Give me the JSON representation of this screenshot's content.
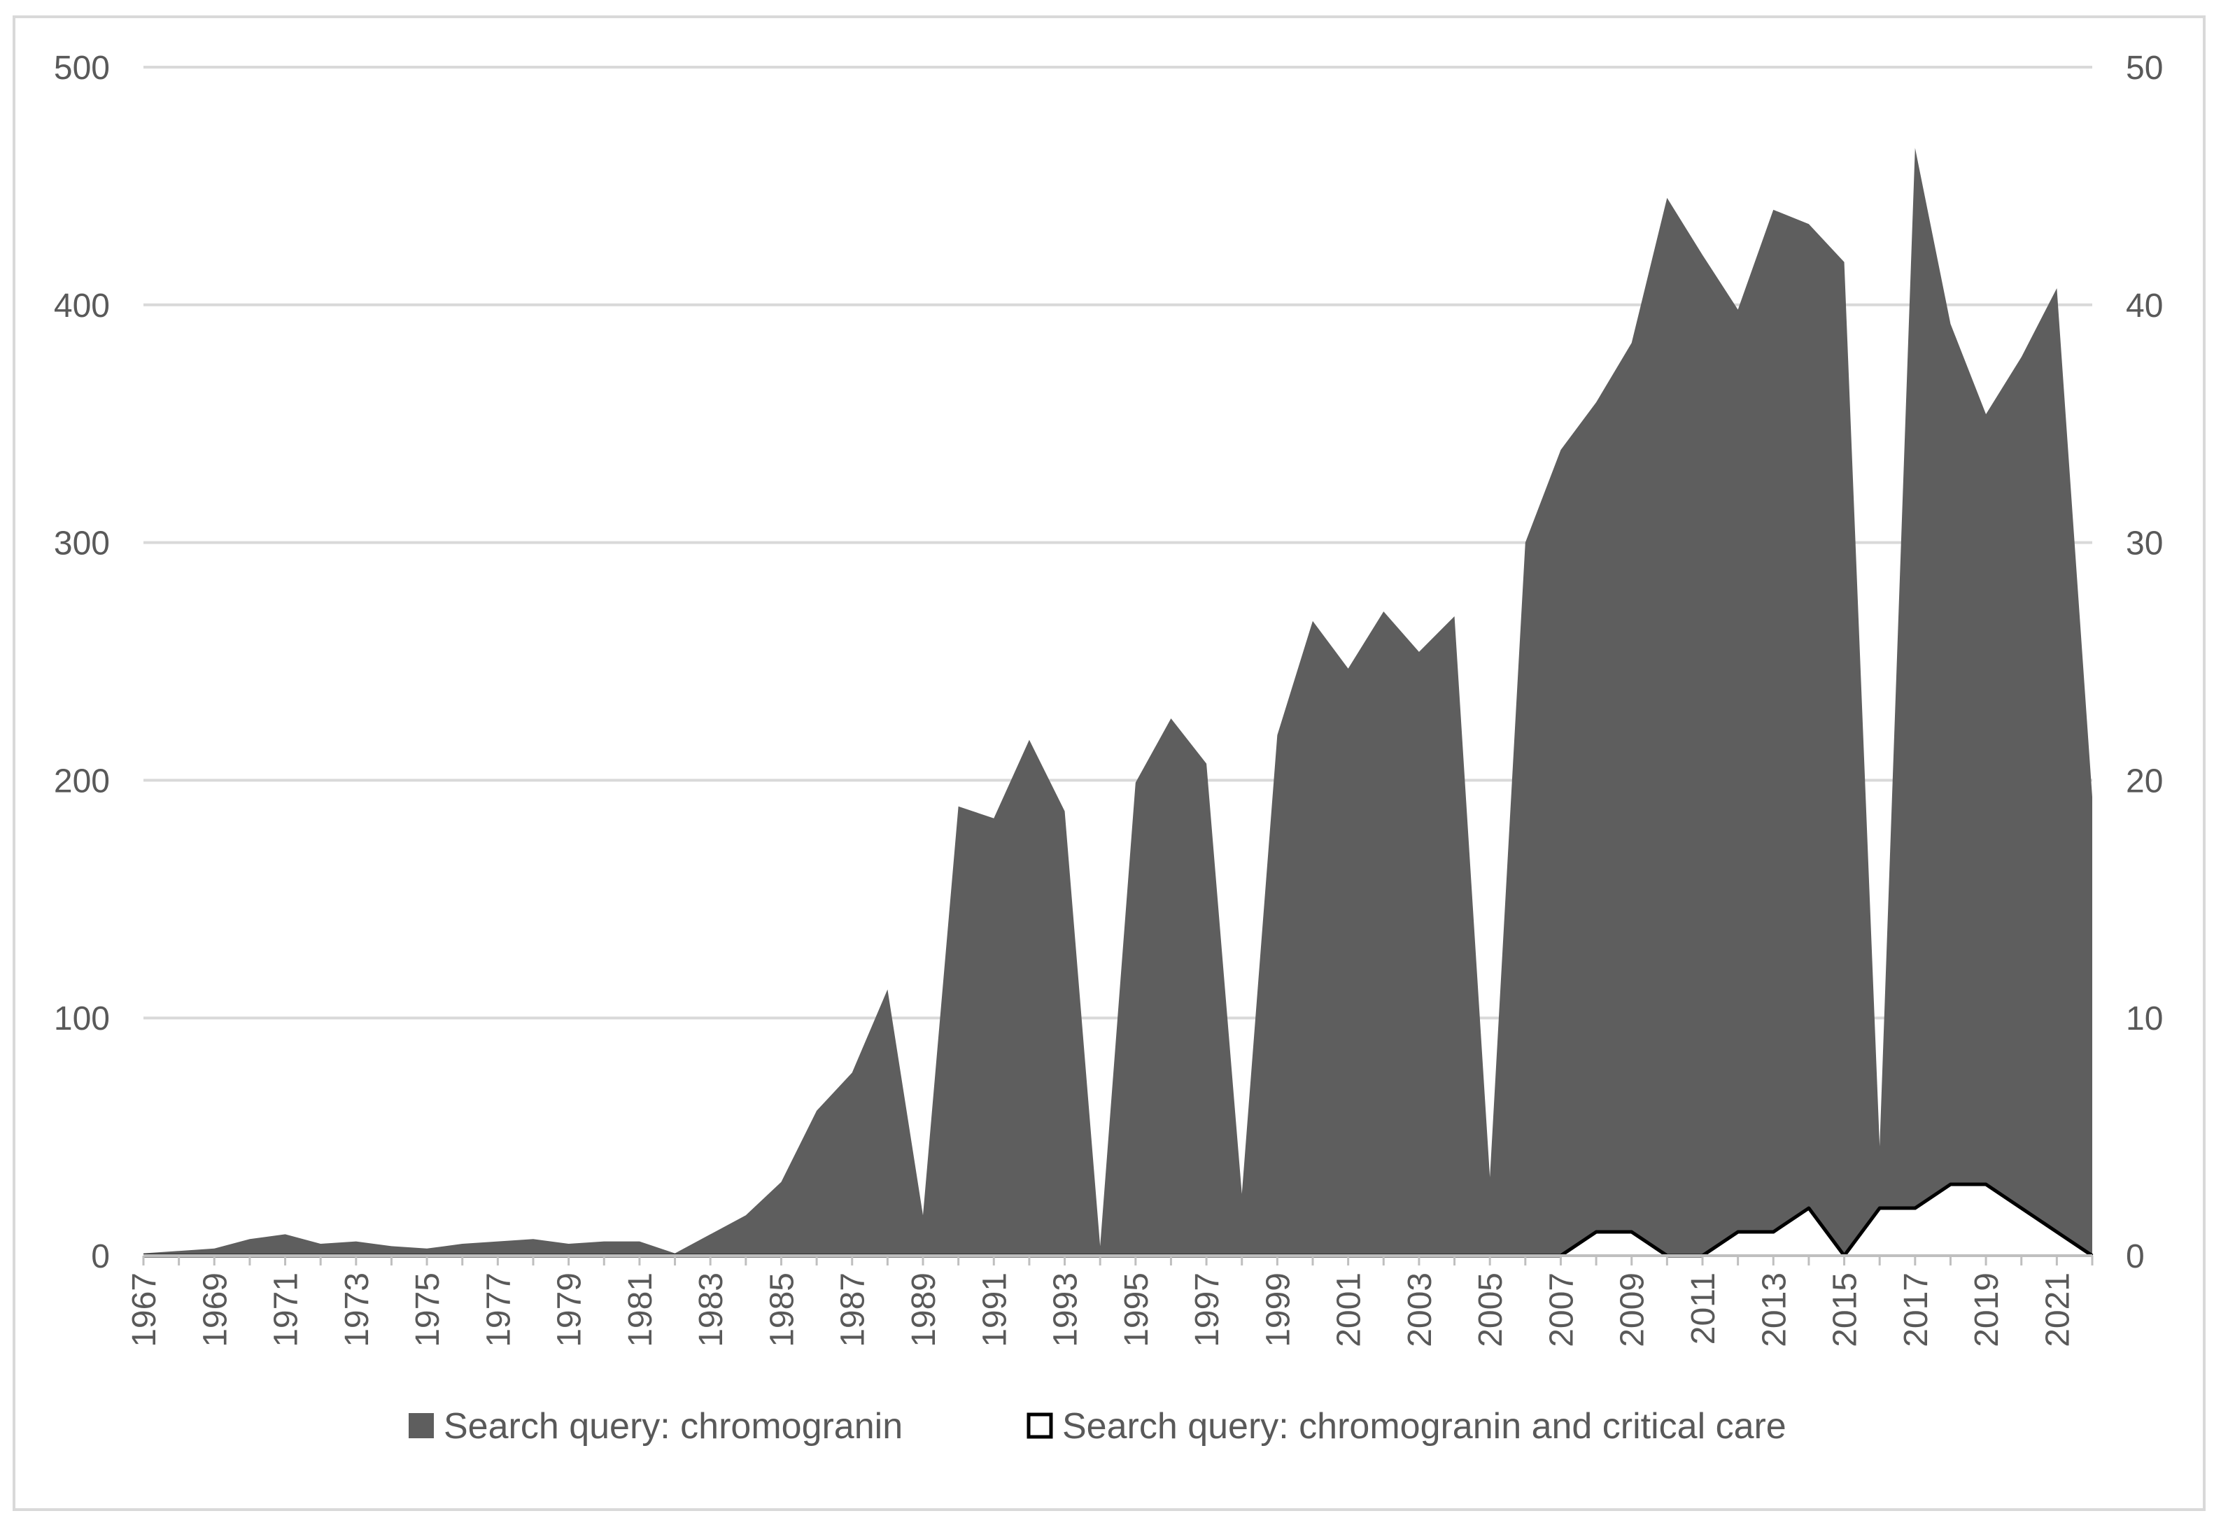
{
  "chart_data": {
    "type": "area",
    "title": "",
    "xlabel": "",
    "ylabel": "",
    "x": [
      1967,
      1968,
      1969,
      1970,
      1971,
      1972,
      1973,
      1974,
      1975,
      1976,
      1977,
      1978,
      1979,
      1980,
      1981,
      1982,
      1983,
      1984,
      1985,
      1986,
      1987,
      1988,
      1989,
      1990,
      1991,
      1992,
      1993,
      1994,
      1995,
      1996,
      1997,
      1998,
      1999,
      2000,
      2001,
      2002,
      2003,
      2004,
      2005,
      2006,
      2007,
      2008,
      2009,
      2010,
      2011,
      2012,
      2013,
      2014,
      2015,
      2016,
      2017,
      2018,
      2019,
      2020,
      2021,
      2022
    ],
    "x_tick_labels": [
      "1967",
      "1969",
      "1971",
      "1973",
      "1975",
      "1977",
      "1979",
      "1981",
      "1983",
      "1985",
      "1987",
      "1989",
      "1991",
      "1993",
      "1995",
      "1997",
      "1999",
      "2001",
      "2003",
      "2005",
      "2007",
      "2009",
      "2011",
      "2013",
      "2015",
      "2017",
      "2019",
      "2021"
    ],
    "y_left": {
      "ylim": [
        0,
        500
      ],
      "ticks": [
        "0",
        "100",
        "200",
        "300",
        "400",
        "500"
      ]
    },
    "y_right": {
      "ylim": [
        0,
        50
      ],
      "ticks": [
        "0",
        "10",
        "20",
        "30",
        "40",
        "50"
      ]
    },
    "grid": true,
    "legend_position": "bottom",
    "series": [
      {
        "name": "Search query: chromogranin",
        "axis": "left",
        "style": "filled-area",
        "color": "#5e5e5e",
        "values": [
          1,
          2,
          3,
          7,
          9,
          5,
          6,
          4,
          3,
          5,
          6,
          7,
          5,
          6,
          6,
          1,
          9,
          17,
          31,
          61,
          77,
          112,
          17,
          189,
          184,
          217,
          187,
          4,
          199,
          226,
          207,
          26,
          219,
          267,
          247,
          271,
          254,
          269,
          33,
          300,
          339,
          359,
          384,
          445,
          421,
          398,
          440,
          434,
          418,
          46,
          466,
          392,
          354,
          378,
          407,
          193
        ]
      },
      {
        "name": "Search query: chromogranin and critical care",
        "axis": "right",
        "style": "white-area-black-outline",
        "color": "#000000",
        "values": [
          0,
          0,
          0,
          0,
          0,
          0,
          0,
          0,
          0,
          0,
          0,
          0,
          0,
          0,
          0,
          0,
          0,
          0,
          0,
          0,
          0,
          0,
          0,
          0,
          0,
          0,
          0,
          0,
          0,
          0,
          0,
          0,
          0,
          0,
          0,
          0,
          0,
          0,
          0,
          0,
          0,
          1,
          1,
          0,
          0,
          1,
          1,
          2,
          0,
          2,
          2,
          3,
          3,
          2,
          1,
          0
        ]
      }
    ]
  }
}
